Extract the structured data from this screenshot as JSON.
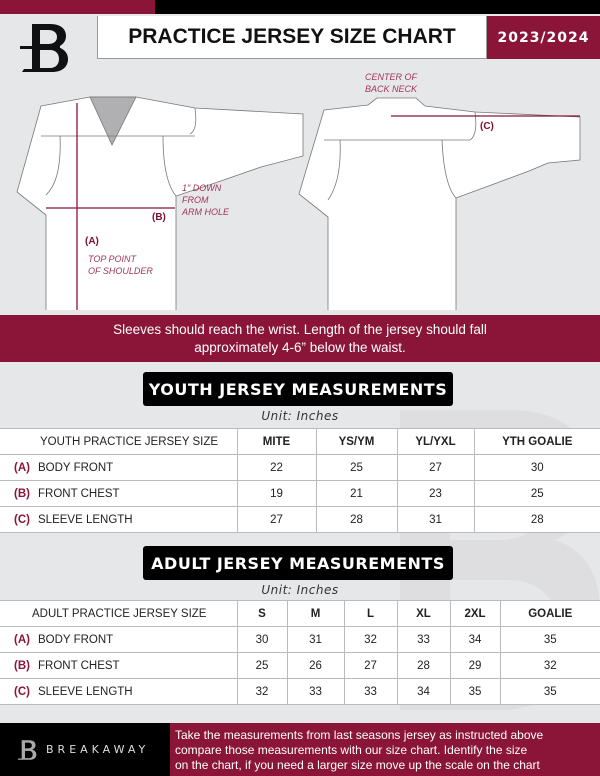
{
  "header": {
    "title": "PRACTICE JERSEY SIZE CHART",
    "season": "2023/2024",
    "brand_color": "#8a1538"
  },
  "diagram": {
    "front": {
      "b_label": "(B)",
      "b_note": [
        "1\" DOWN",
        "FROM",
        "ARM HOLE"
      ],
      "a_label": "(A)",
      "a_note": [
        "TOP POINT",
        "OF SHOULDER"
      ]
    },
    "back": {
      "c_note": [
        "CENTER OF",
        "BACK NECK"
      ],
      "c_label": "(C)"
    }
  },
  "banner": {
    "line1": "Sleeves should reach the wrist. Length of the jersey should fall",
    "line2": "approximately 4-6” below the waist."
  },
  "youth": {
    "title": "YOUTH JERSEY MEASUREMENTS",
    "unit": "Unit: Inches",
    "header": "YOUTH PRACTICE JERSEY SIZE",
    "sizes": [
      "MITE",
      "YS/YM",
      "YL/YXL",
      "YTH GOALIE"
    ],
    "rows": [
      {
        "code": "(A)",
        "name": "BODY FRONT",
        "values": [
          "22",
          "25",
          "27",
          "30"
        ]
      },
      {
        "code": "(B)",
        "name": "FRONT CHEST",
        "values": [
          "19",
          "21",
          "23",
          "25"
        ]
      },
      {
        "code": "(C)",
        "name": "SLEEVE LENGTH",
        "values": [
          "27",
          "28",
          "31",
          "28"
        ]
      }
    ]
  },
  "adult": {
    "title": "ADULT JERSEY MEASUREMENTS",
    "unit": "Unit: Inches",
    "header": "ADULT PRACTICE JERSEY SIZE",
    "sizes": [
      "S",
      "M",
      "L",
      "XL",
      "2XL",
      "GOALIE"
    ],
    "rows": [
      {
        "code": "(A)",
        "name": "BODY FRONT",
        "values": [
          "30",
          "31",
          "32",
          "33",
          "34",
          "35"
        ]
      },
      {
        "code": "(B)",
        "name": "FRONT CHEST",
        "values": [
          "25",
          "26",
          "27",
          "28",
          "29",
          "32"
        ]
      },
      {
        "code": "(C)",
        "name": "SLEEVE LENGTH",
        "values": [
          "32",
          "33",
          "33",
          "34",
          "35",
          "35"
        ]
      }
    ]
  },
  "footer": {
    "brand": "BREAKAWAY",
    "text": [
      "Take the measurements from last seasons jersey as instructed above",
      "compare those measurements  with our size chart. Identify the size",
      "on the chart, if you need a larger size move up the scale on the chart"
    ]
  }
}
